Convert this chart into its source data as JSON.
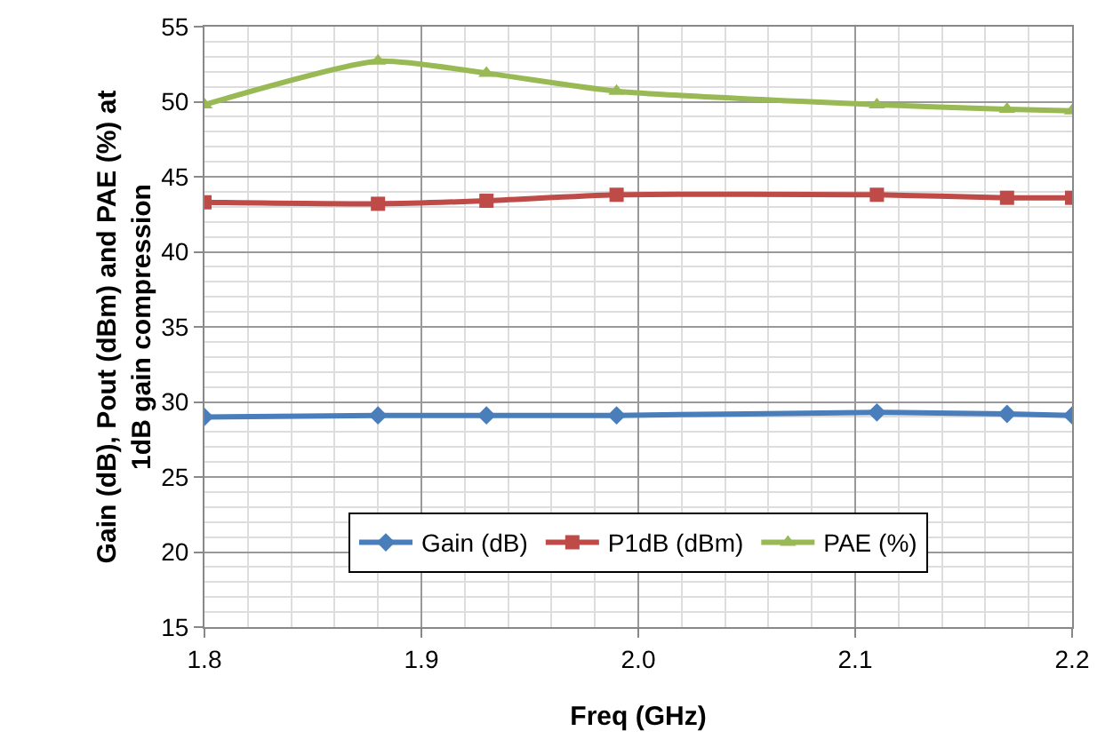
{
  "chart_data": {
    "type": "line",
    "xlabel": "Freq (GHz)",
    "ylabel": "Gain (dB), Pout (dBm) and PAE (%) at\n1dB gain compression",
    "x": [
      1.8,
      1.88,
      1.93,
      1.99,
      2.11,
      2.17,
      2.2
    ],
    "series": [
      {
        "name": "Gain (dB)",
        "color": "#4a7ebb",
        "marker": "diamond",
        "values": [
          29.0,
          29.1,
          29.1,
          29.1,
          29.3,
          29.2,
          29.1
        ]
      },
      {
        "name": "P1dB (dBm)",
        "color": "#be4b48",
        "marker": "square",
        "values": [
          43.3,
          43.2,
          43.4,
          43.8,
          43.8,
          43.6,
          43.6
        ]
      },
      {
        "name": "PAE (%)",
        "color": "#98b954",
        "marker": "triangle",
        "values": [
          49.8,
          52.7,
          51.9,
          50.7,
          49.8,
          49.5,
          49.4
        ]
      }
    ],
    "xlim": [
      1.8,
      2.2
    ],
    "xticks": [
      {
        "value": 1.8,
        "label": "1.8"
      },
      {
        "value": 1.9,
        "label": "1.9"
      },
      {
        "value": 2.0,
        "label": "2.0"
      },
      {
        "value": 2.1,
        "label": "2.1"
      },
      {
        "value": 2.2,
        "label": "2.2"
      }
    ],
    "ylim": [
      15,
      55
    ],
    "yticks": [
      15,
      20,
      25,
      30,
      35,
      40,
      45,
      50,
      55
    ],
    "grid": true,
    "legend": "bottom",
    "line_style": "solid"
  }
}
